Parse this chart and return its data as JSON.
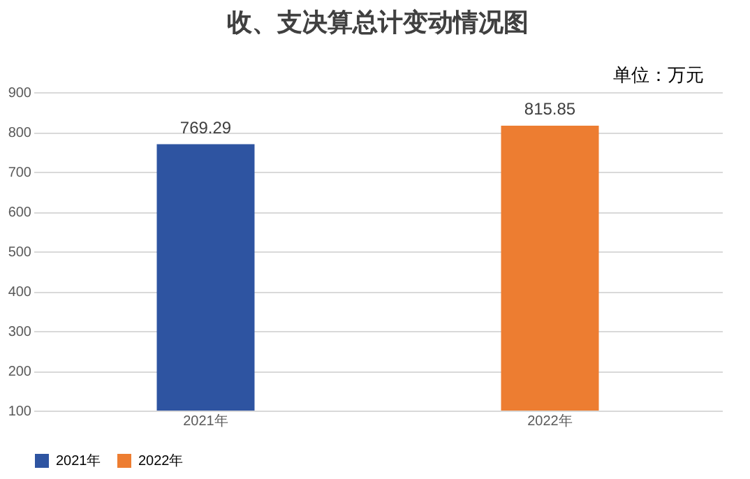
{
  "chart_data": {
    "type": "bar",
    "title": "收、支决算总计变动情况图",
    "annotations": [
      "单位：万元"
    ],
    "categories": [
      "2021年",
      "2022年"
    ],
    "series": [
      {
        "name": "2021年",
        "color": "#2e54a1",
        "values": [
          769.29,
          null
        ]
      },
      {
        "name": "2022年",
        "color": "#ed7d31",
        "values": [
          null,
          815.85
        ]
      }
    ],
    "ylim": [
      100,
      900
    ],
    "yticks": [
      100,
      200,
      300,
      400,
      500,
      600,
      700,
      800,
      900
    ],
    "grid": "y",
    "legend": "bottom",
    "data_labels": true
  }
}
